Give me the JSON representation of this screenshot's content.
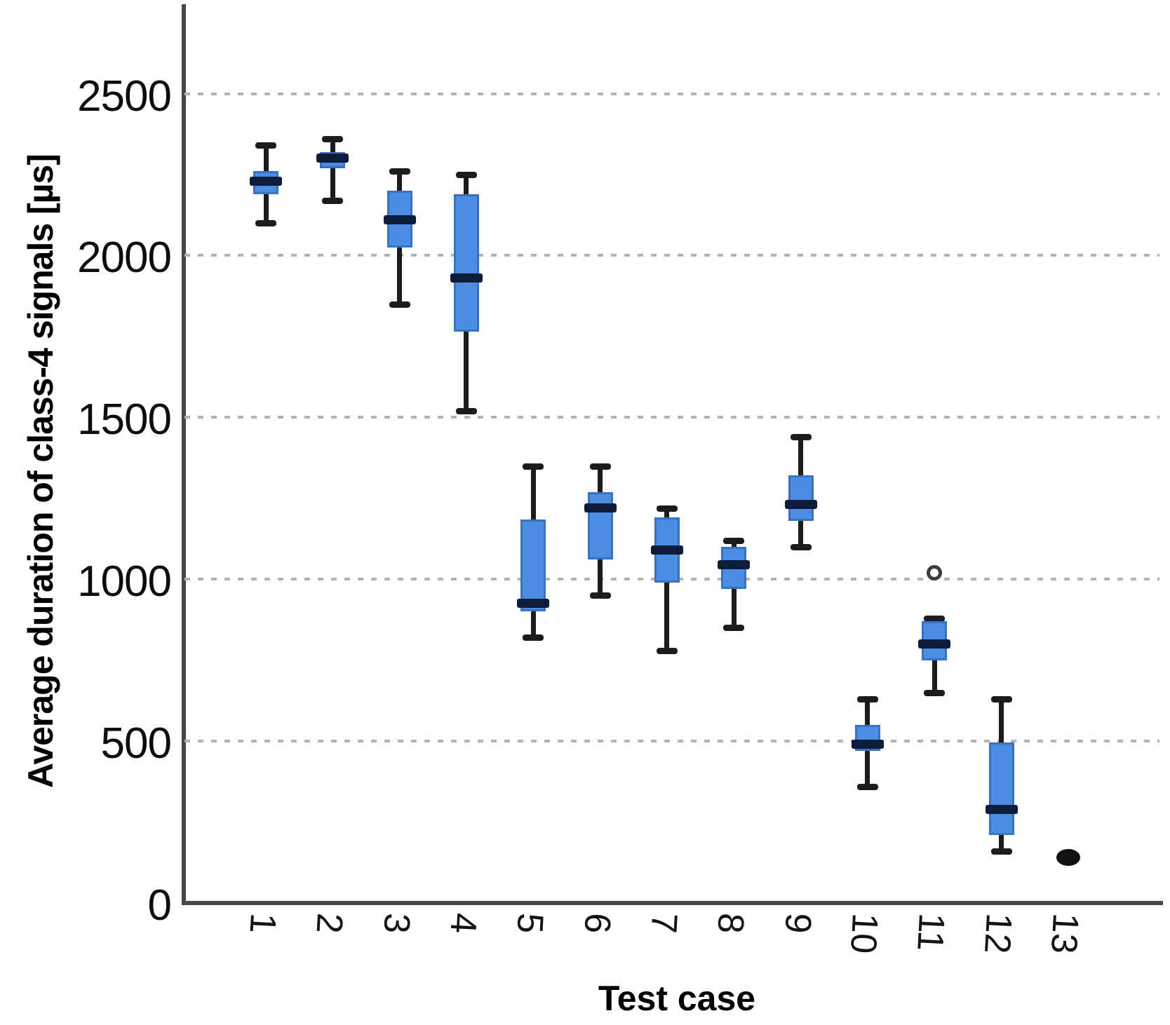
{
  "chart_data": {
    "type": "box",
    "title": "",
    "xlabel": "Test case",
    "ylabel": "Average duration of class-4 signals [µs]",
    "ylim": [
      0,
      2770
    ],
    "yticks": [
      0,
      500,
      1000,
      1500,
      2000,
      2500
    ],
    "grid": "horizontal-dotted",
    "legend": "none",
    "categories": [
      "1",
      "2",
      "3",
      "4",
      "5",
      "6",
      "7",
      "8",
      "9",
      "10",
      "11",
      "12",
      "13"
    ],
    "series": [
      {
        "category": "1",
        "whisker_low": 2100,
        "q1": 2190,
        "median": 2230,
        "q3": 2260,
        "whisker_high": 2340,
        "outliers": []
      },
      {
        "category": "2",
        "whisker_low": 2170,
        "q1": 2270,
        "median": 2300,
        "q3": 2320,
        "whisker_high": 2360,
        "outliers": []
      },
      {
        "category": "3",
        "whisker_low": 1850,
        "q1": 2025,
        "median": 2110,
        "q3": 2200,
        "whisker_high": 2260,
        "outliers": []
      },
      {
        "category": "4",
        "whisker_low": 1520,
        "q1": 1765,
        "median": 1930,
        "q3": 2190,
        "whisker_high": 2250,
        "outliers": []
      },
      {
        "category": "5",
        "whisker_low": 820,
        "q1": 900,
        "median": 925,
        "q3": 1185,
        "whisker_high": 1350,
        "outliers": []
      },
      {
        "category": "6",
        "whisker_low": 950,
        "q1": 1060,
        "median": 1220,
        "q3": 1270,
        "whisker_high": 1350,
        "outliers": []
      },
      {
        "category": "7",
        "whisker_low": 780,
        "q1": 990,
        "median": 1090,
        "q3": 1190,
        "whisker_high": 1220,
        "outliers": []
      },
      {
        "category": "8",
        "whisker_low": 850,
        "q1": 970,
        "median": 1045,
        "q3": 1100,
        "whisker_high": 1120,
        "outliers": []
      },
      {
        "category": "9",
        "whisker_low": 1100,
        "q1": 1180,
        "median": 1230,
        "q3": 1320,
        "whisker_high": 1440,
        "outliers": []
      },
      {
        "category": "10",
        "whisker_low": 360,
        "q1": 470,
        "median": 490,
        "q3": 550,
        "whisker_high": 630,
        "outliers": []
      },
      {
        "category": "11",
        "whisker_low": 650,
        "q1": 750,
        "median": 800,
        "q3": 870,
        "whisker_high": 880,
        "outliers": [
          1020
        ]
      },
      {
        "category": "12",
        "whisker_low": 160,
        "q1": 210,
        "median": 290,
        "q3": 495,
        "whisker_high": 630,
        "outliers": []
      },
      {
        "category": "13",
        "point": 140
      }
    ],
    "colors": {
      "box_fill": "#4a8de2",
      "box_edge": "#3a72c2",
      "median": "#0c1c3a",
      "whisker": "#1c1c1c",
      "grid": "#b3b3b3",
      "axis": "#474747",
      "outlier_edge": "#3d3d3d",
      "point": "#111111"
    }
  }
}
